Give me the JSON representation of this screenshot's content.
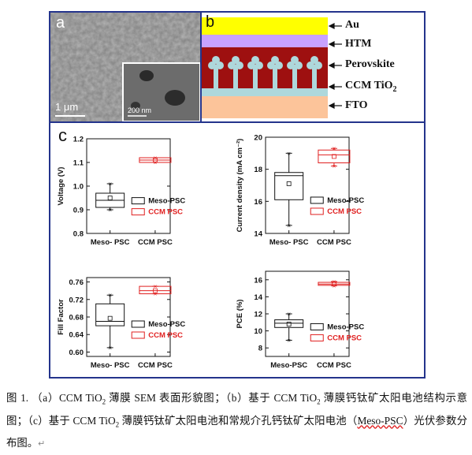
{
  "panel_a": {
    "letter": "a",
    "scale_main": "1 μm",
    "scale_inset": "200 nm"
  },
  "panel_b": {
    "letter": "b",
    "layers": [
      "Au",
      "HTM",
      "Perovskite",
      "CCM TiO",
      "FTO"
    ],
    "tio2_subscript": "2",
    "colors": {
      "au": "#ffff00",
      "htm": "#c8a2ff",
      "perovskite": "#9e1010",
      "ccm_tio2": "#aed8dc",
      "fto": "#fcc49a"
    }
  },
  "panel_c": {
    "letter": "c",
    "legend": {
      "meso": "Meso-PSC",
      "ccm": "CCM  PSC"
    },
    "colors": {
      "meso": "#111111",
      "ccm": "#e02020"
    }
  },
  "chart_data": [
    {
      "type": "box",
      "ylabel": "Voltage (V)",
      "yticks": [
        "0.8",
        "0.9",
        "1.0",
        "1.1",
        "1.2"
      ],
      "ylim": [
        0.8,
        1.2
      ],
      "categories": [
        "Meso- PSC",
        "CCM  PSC"
      ],
      "series": [
        {
          "name": "Meso-PSC",
          "min": 0.9,
          "q1": 0.91,
          "median": 0.94,
          "q3": 0.97,
          "max": 1.01,
          "mean": 0.95
        },
        {
          "name": "CCM  PSC",
          "min": 1.1,
          "q1": 1.1,
          "median": 1.11,
          "q3": 1.12,
          "max": 1.12,
          "mean": 1.11
        }
      ]
    },
    {
      "type": "box",
      "ylabel": "Current density (mA cm⁻²)",
      "yticks": [
        "14",
        "16",
        "18",
        "20"
      ],
      "ylim": [
        14,
        20
      ],
      "categories": [
        "Meso- PSC",
        "CCM  PSC"
      ],
      "series": [
        {
          "name": "Meso-PSC",
          "min": 14.5,
          "q1": 16.1,
          "median": 17.6,
          "q3": 17.8,
          "max": 19.0,
          "mean": 17.1
        },
        {
          "name": "CCM  PSC",
          "min": 18.2,
          "q1": 18.4,
          "median": 18.9,
          "q3": 19.2,
          "max": 19.3,
          "mean": 18.8
        }
      ]
    },
    {
      "type": "box",
      "ylabel": "Fill Factor",
      "yticks": [
        "0.60",
        "0.64",
        "0.68",
        "0.72",
        "0.76"
      ],
      "ylim": [
        0.59,
        0.77
      ],
      "categories": [
        "Meso- PSC",
        "CCM  PSC"
      ],
      "series": [
        {
          "name": "Meso-PSC",
          "min": 0.61,
          "q1": 0.66,
          "median": 0.67,
          "q3": 0.71,
          "max": 0.73,
          "mean": 0.677
        },
        {
          "name": "CCM  PSC",
          "min": 0.733,
          "q1": 0.733,
          "median": 0.74,
          "q3": 0.75,
          "max": 0.75,
          "mean": 0.74
        }
      ]
    },
    {
      "type": "box",
      "ylabel": "PCE (%)",
      "yticks": [
        "8",
        "10",
        "12",
        "14",
        "16"
      ],
      "ylim": [
        7,
        17
      ],
      "categories": [
        "Meso-PSC",
        "CCM PSC"
      ],
      "series": [
        {
          "name": "Meso-PSC",
          "min": 8.9,
          "q1": 10.4,
          "median": 10.9,
          "q3": 11.3,
          "max": 12.0,
          "mean": 10.8
        },
        {
          "name": "CCM  PSC",
          "min": 15.3,
          "q1": 15.35,
          "median": 15.5,
          "q3": 15.7,
          "max": 15.8,
          "mean": 15.5
        }
      ]
    }
  ],
  "caption": {
    "p1": "图 1. （a）CCM TiO",
    "p2": " 薄膜 SEM 表面形貌图；（b）基于 CCM TiO",
    "p3": " 薄膜钙钛矿太阳电池结构示意图；（c）基于 CCM TiO",
    "p4": " 薄膜钙钛矿太阳电池和常规介孔钙钛矿太阳电池（",
    "p5": "Meso-PSC",
    "p6": "）光伏参数分布图。",
    "sub": "2"
  }
}
